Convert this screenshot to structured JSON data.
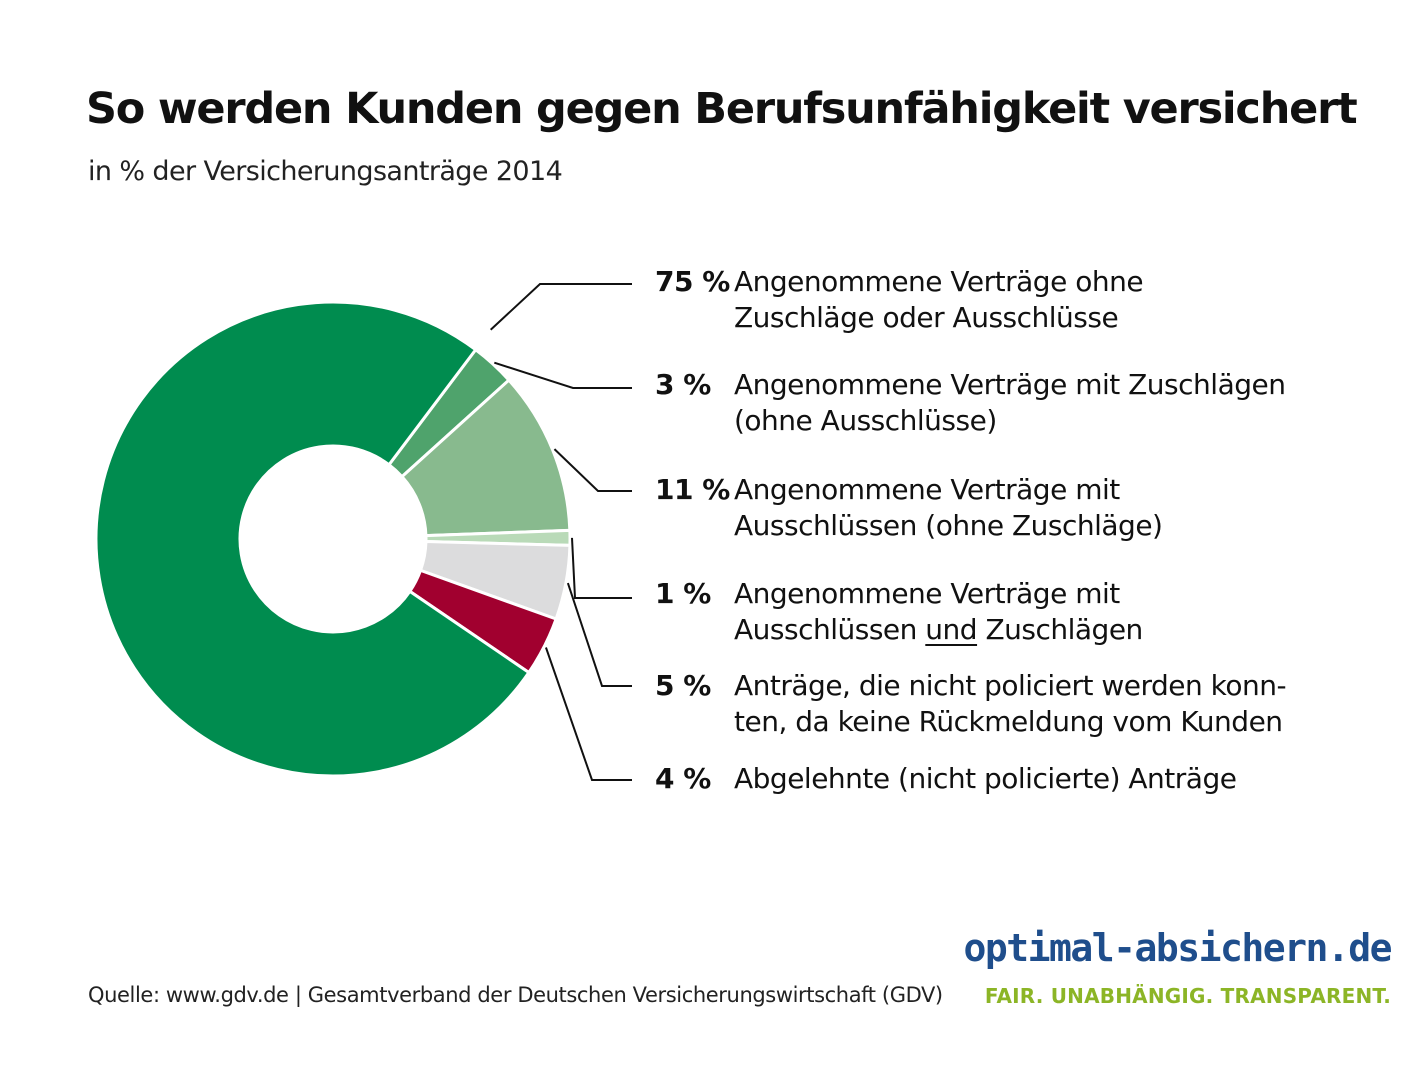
{
  "title": "So werden Kunden gegen Berufsunfähigkeit versichert",
  "subtitle": "in % der Versicherungsanträge 2014",
  "chart_data": {
    "type": "pie",
    "variant": "donut",
    "title": "So werden Kunden gegen Berufsunfähigkeit versichert",
    "subtitle": "in % der Versicherungsanträge 2014",
    "legend_position": "right",
    "slices": [
      {
        "value": 75,
        "label": "75 %",
        "text_line1": "Angenommene Verträge ohne",
        "text_line2": "Zuschläge oder Ausschlüsse",
        "color": "#008c4f"
      },
      {
        "value": 3,
        "label": "3 %",
        "text_line1": "Angenommene Verträge mit Zuschlägen",
        "text_line2": "(ohne Ausschlüsse)",
        "color": "#4fa36c"
      },
      {
        "value": 11,
        "label": "11 %",
        "text_line1": "Angenommene Verträge mit",
        "text_line2": "Ausschlüssen (ohne Zuschläge)",
        "color": "#88ba8e"
      },
      {
        "value": 1,
        "label": "1 %",
        "text_line1": "Angenommene Verträge mit",
        "text_line2_a": "Ausschlüssen ",
        "text_line2_u": "und",
        "text_line2_b": " Zuschlägen",
        "color": "#b9dab8"
      },
      {
        "value": 5,
        "label": "5 %",
        "text_line1": "Anträge, die nicht policiert werden konn-",
        "text_line2": "ten, da keine Rückmeldung vom Kunden",
        "color": "#dcdcdd"
      },
      {
        "value": 4,
        "label": "4 %",
        "text_line1": "Abgelehnte (nicht policierte) Anträge",
        "color": "#a1002f"
      }
    ]
  },
  "source": "Quelle: www.gdv.de | Gesamtverband der Deutschen Versicherungswirtschaft (GDV)",
  "brand": {
    "name": "optimal-absichern.de",
    "tagline": "FAIR. UNABHÄNGIG. TRANSPARENT.",
    "name_color": "#1f4e8c",
    "tagline_color": "#8cb526"
  }
}
